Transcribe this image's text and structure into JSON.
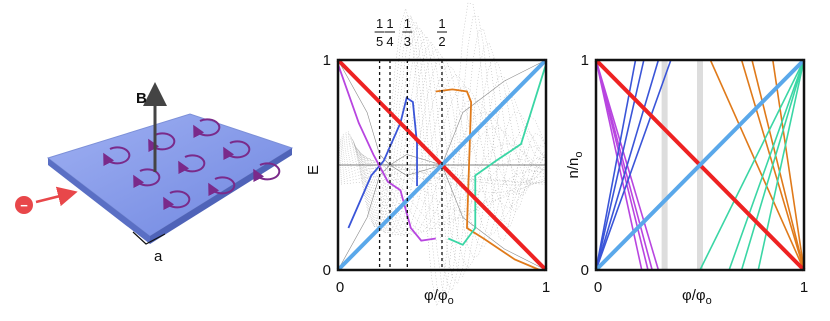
{
  "illustration": {
    "field_label": "B",
    "lattice_label": "a",
    "electron_label": "−"
  },
  "energy_panel": {
    "ylabel": "E",
    "y_tick_labels": [
      "0",
      "1"
    ],
    "x_tick_labels": [
      "0",
      "1"
    ],
    "xlabel": "φ/φ",
    "xlabel_sub": "o",
    "fractions": [
      {
        "num": "1",
        "den": "5"
      },
      {
        "num": "1",
        "den": "4"
      },
      {
        "num": "1",
        "den": "3"
      },
      {
        "num": "1",
        "den": "2"
      }
    ]
  },
  "density_panel": {
    "ylabel": "n/n",
    "ylabel_sub": "o",
    "y_tick_labels": [
      "0",
      "1"
    ],
    "x_tick_labels": [
      "0",
      "1"
    ],
    "xlabel": "φ/φ",
    "xlabel_sub": "o"
  }
}
